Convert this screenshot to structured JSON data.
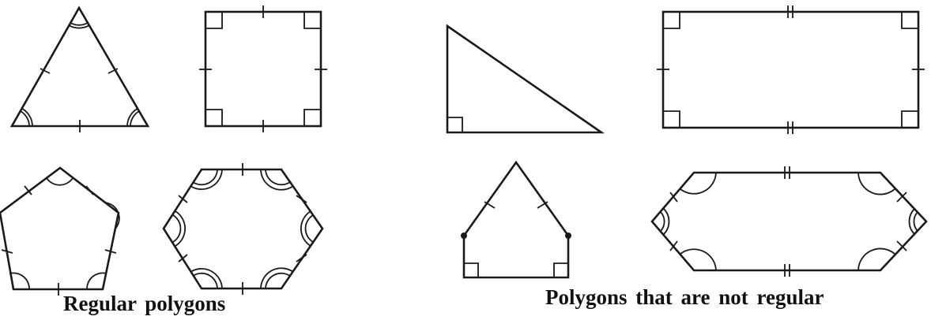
{
  "captions": {
    "regular": "Regular polygons",
    "not_regular": "Polygons that are not regular"
  },
  "colors": {
    "stroke": "#1a1a1a",
    "background": "#ffffff"
  },
  "shapes": {
    "regular": [
      "equilateral-triangle",
      "square",
      "regular-pentagon",
      "regular-hexagon"
    ],
    "not_regular": [
      "right-triangle",
      "rectangle",
      "irregular-pentagon",
      "irregular-hexagon"
    ]
  }
}
